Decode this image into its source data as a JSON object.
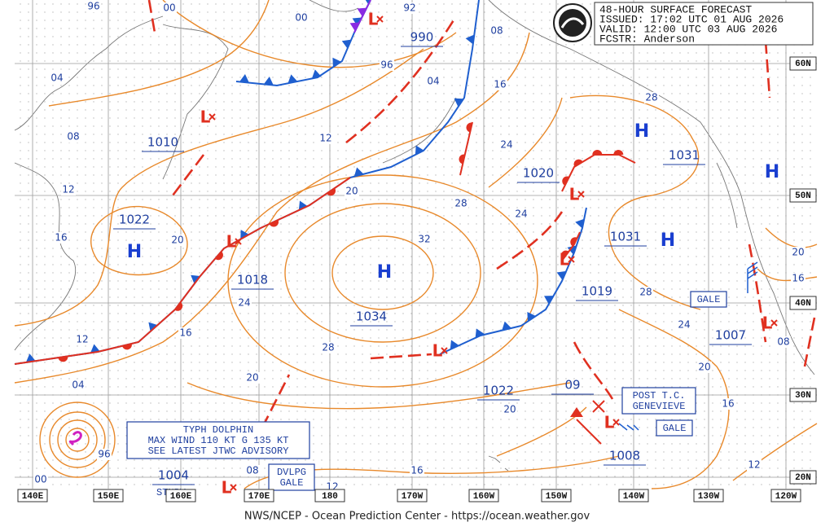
{
  "header": {
    "lines": [
      "48-HOUR SURFACE FORECAST",
      "ISSUED: 17:02 UTC 01 AUG 2026",
      "VALID:  12:00 UTC 03 AUG 2026",
      "FCSTR:  Anderson"
    ]
  },
  "pressure_labels": [
    "990",
    "1010",
    "1022",
    "1018",
    "1034",
    "1020",
    "1031",
    "1031",
    "1019",
    "1007",
    "1022",
    "1008",
    "1004",
    "09"
  ],
  "isobar_labels": [
    "96",
    "00",
    "92",
    "00",
    "08",
    "04",
    "96",
    "04",
    "16",
    "08",
    "12",
    "28",
    "24",
    "20",
    "12",
    "24",
    "16",
    "20",
    "28",
    "32",
    "24",
    "28",
    "24",
    "20",
    "16",
    "12",
    "20",
    "04",
    "12",
    "96",
    "00",
    "08",
    "12",
    "16",
    "20",
    "16",
    "28",
    "20",
    "16",
    "12",
    "08"
  ],
  "highs": [
    "H",
    "H",
    "H",
    "H",
    "H"
  ],
  "lows": [
    "L",
    "L",
    "L",
    "L",
    "L",
    "L",
    "L",
    "L",
    "L"
  ],
  "boxes": {
    "gale_1": "GALE",
    "gale_2": "GALE",
    "post_tc": [
      "POST T.C.",
      "GENEVIEVE"
    ],
    "typhoon": [
      "TYPH DOLPHIN",
      "MAX WIND 110 KT G 135 KT",
      "SEE LATEST JTWC ADVISORY"
    ],
    "developing": [
      "DVLPG",
      "GALE"
    ],
    "stationary": "STNRY"
  },
  "latitude_labels": [
    "60N",
    "50N",
    "40N",
    "30N",
    "20N"
  ],
  "longitude_labels": [
    "140E",
    "150E",
    "160E",
    "170E",
    "180",
    "170W",
    "160W",
    "150W",
    "140W",
    "130W",
    "120W"
  ],
  "footer": "NWS/NCEP - Ocean Prediction Center - https://ocean.weather.gov"
}
